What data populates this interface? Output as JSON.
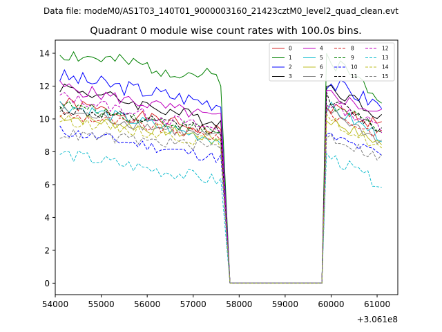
{
  "chart_data": {
    "type": "line",
    "suptitle": "Data file: modeM0/AS1T03_140T01_9000003160_21423cztM0_level2_quad_clean.evt",
    "title": "Quadrant 0 module wise count rates with 100.0s bins.",
    "xlabel": "",
    "ylabel": "",
    "x_offset_label": "+3.061e8",
    "xlim": [
      54000,
      61450
    ],
    "ylim": [
      -0.7,
      14.8
    ],
    "xticks": [
      54000,
      55000,
      56000,
      57000,
      58000,
      59000,
      60000,
      61000
    ],
    "yticks": [
      0,
      2,
      4,
      6,
      8,
      10,
      12,
      14
    ],
    "xtick_labels": [
      "54000",
      "55000",
      "56000",
      "57000",
      "58000",
      "59000",
      "60000",
      "61000"
    ],
    "ytick_labels": [
      "0",
      "2",
      "4",
      "6",
      "8",
      "10",
      "12",
      "14"
    ],
    "legend_position": "top-right",
    "legend_columns": 4,
    "segments": {
      "first": {
        "start": 54100,
        "end": 57600,
        "step": 100
      },
      "gap": {
        "start": 57800,
        "end": 59800,
        "value": 0
      },
      "second": {
        "start": 59900,
        "end": 61100,
        "step": 100
      }
    },
    "series": [
      {
        "name": "0",
        "color": "#d62728",
        "style": "solid",
        "level1": 11.0,
        "end1": 9.2,
        "level2": 10.8,
        "end2": 9.6,
        "amp": 0.4,
        "seed": 1
      },
      {
        "name": "1",
        "color": "#008000",
        "style": "solid",
        "level1": 14.0,
        "end1": 12.5,
        "level2": 13.8,
        "end2": 11.4,
        "amp": 0.5,
        "seed": 2
      },
      {
        "name": "2",
        "color": "#0000ff",
        "style": "solid",
        "level1": 12.6,
        "end1": 10.9,
        "level2": 12.3,
        "end2": 10.8,
        "amp": 0.5,
        "seed": 3
      },
      {
        "name": "3",
        "color": "#000000",
        "style": "solid",
        "level1": 12.0,
        "end1": 9.8,
        "level2": 12.1,
        "end2": 10.2,
        "amp": 0.4,
        "seed": 4
      },
      {
        "name": "4",
        "color": "#bf00bf",
        "style": "solid",
        "level1": 12.0,
        "end1": 10.0,
        "level2": 11.6,
        "end2": 10.3,
        "amp": 0.4,
        "seed": 5
      },
      {
        "name": "5",
        "color": "#17becf",
        "style": "solid",
        "level1": 10.9,
        "end1": 8.7,
        "level2": 10.8,
        "end2": 8.9,
        "amp": 0.4,
        "seed": 6
      },
      {
        "name": "6",
        "color": "#bcbd22",
        "style": "solid",
        "level1": 10.2,
        "end1": 8.8,
        "level2": 10.0,
        "end2": 8.5,
        "amp": 0.35,
        "seed": 7
      },
      {
        "name": "7",
        "color": "#808080",
        "style": "solid",
        "level1": 10.5,
        "end1": 8.8,
        "level2": 10.6,
        "end2": 8.6,
        "amp": 0.35,
        "seed": 8
      },
      {
        "name": "8",
        "color": "#d62728",
        "style": "dashed",
        "level1": 10.3,
        "end1": 8.9,
        "level2": 10.4,
        "end2": 9.0,
        "amp": 0.35,
        "seed": 9
      },
      {
        "name": "9",
        "color": "#008000",
        "style": "dashed",
        "level1": 10.9,
        "end1": 9.2,
        "level2": 10.9,
        "end2": 9.4,
        "amp": 0.35,
        "seed": 10
      },
      {
        "name": "10",
        "color": "#0000ff",
        "style": "dashed",
        "level1": 9.3,
        "end1": 7.6,
        "level2": 9.0,
        "end2": 7.8,
        "amp": 0.35,
        "seed": 11
      },
      {
        "name": "11",
        "color": "#000000",
        "style": "dashed",
        "level1": 10.6,
        "end1": 9.3,
        "level2": 11.3,
        "end2": 9.3,
        "amp": 0.35,
        "seed": 12
      },
      {
        "name": "12",
        "color": "#bf00bf",
        "style": "dashed",
        "level1": 11.4,
        "end1": 9.3,
        "level2": 11.0,
        "end2": 9.5,
        "amp": 0.35,
        "seed": 13
      },
      {
        "name": "13",
        "color": "#17becf",
        "style": "dashed",
        "level1": 7.9,
        "end1": 6.2,
        "level2": 7.8,
        "end2": 6.0,
        "amp": 0.4,
        "seed": 14
      },
      {
        "name": "14",
        "color": "#bcbd22",
        "style": "dashed",
        "level1": 10.0,
        "end1": 8.5,
        "level2": 10.0,
        "end2": 8.2,
        "amp": 0.35,
        "seed": 15
      },
      {
        "name": "15",
        "color": "#808080",
        "style": "dashed",
        "level1": 9.1,
        "end1": 8.3,
        "level2": 9.0,
        "end2": 7.6,
        "amp": 0.35,
        "seed": 16
      }
    ]
  }
}
